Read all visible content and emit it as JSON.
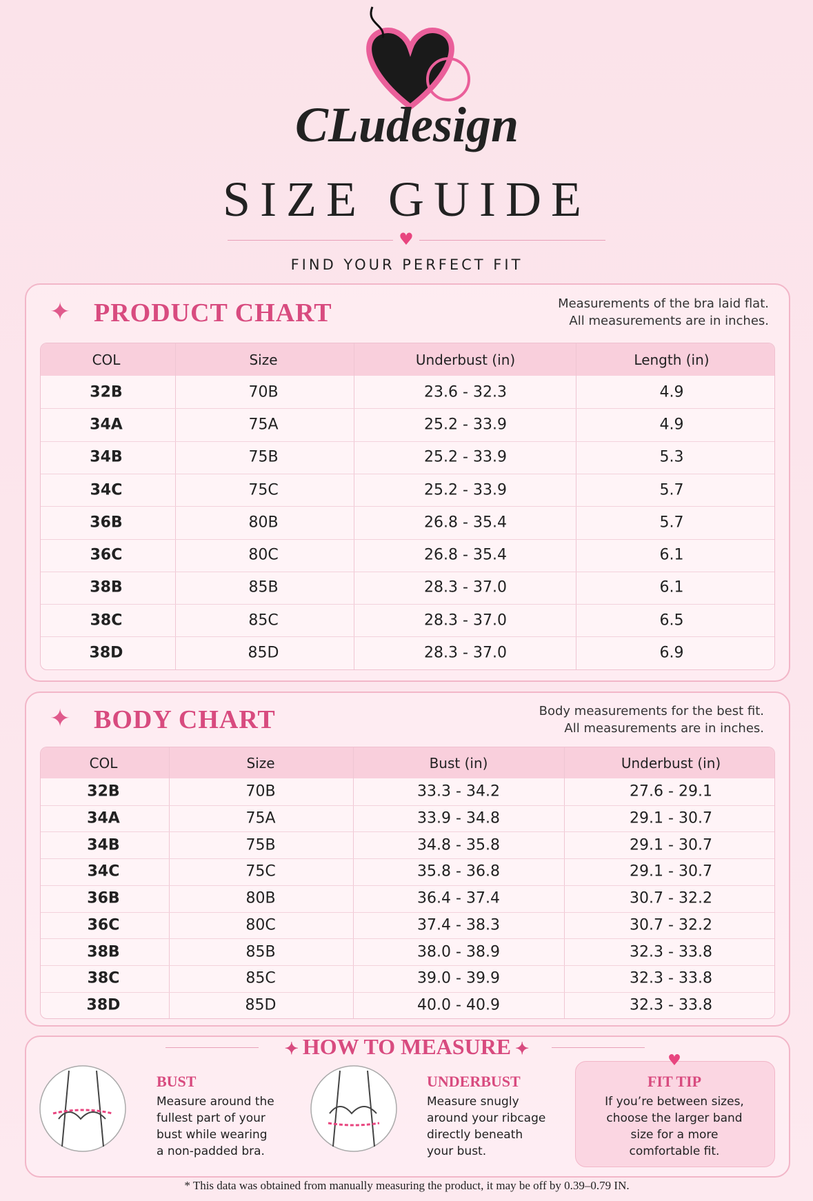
{
  "logo": "CLudesign",
  "header": {
    "title": "SIZE GUIDE",
    "subtitle": "FIND YOUR PERFECT FIT"
  },
  "product_chart": {
    "title": "PRODUCT CHART",
    "notes": [
      "Measurements of the bra laid flat.",
      "All measurements are in inches."
    ],
    "columns": [
      "COL",
      "Size",
      "Underbust (in)",
      "Length (in)"
    ],
    "rows": [
      [
        "32B",
        "70B",
        "23.6 - 32.3",
        "4.9"
      ],
      [
        "34A",
        "75A",
        "25.2 - 33.9",
        "4.9"
      ],
      [
        "34B",
        "75B",
        "25.2 - 33.9",
        "5.3"
      ],
      [
        "34C",
        "75C",
        "25.2 - 33.9",
        "5.7"
      ],
      [
        "36B",
        "80B",
        "26.8 - 35.4",
        "5.7"
      ],
      [
        "36C",
        "80C",
        "26.8 - 35.4",
        "6.1"
      ],
      [
        "38B",
        "85B",
        "28.3 - 37.0",
        "6.1"
      ],
      [
        "38C",
        "85C",
        "28.3 - 37.0",
        "6.5"
      ],
      [
        "38D",
        "85D",
        "28.3 - 37.0",
        "6.9"
      ]
    ]
  },
  "body_chart": {
    "title": "BODY CHART",
    "notes": [
      "Body measurements for the best fit.",
      "All measurements are in inches."
    ],
    "columns": [
      "COL",
      "Size",
      "Bust (in)",
      "Underbust (in)"
    ],
    "rows": [
      [
        "32B",
        "70B",
        "33.3 - 34.2",
        "27.6 - 29.1"
      ],
      [
        "34A",
        "75A",
        "33.9 - 34.8",
        "29.1 - 30.7"
      ],
      [
        "34B",
        "75B",
        "34.8 - 35.8",
        "29.1 - 30.7"
      ],
      [
        "34C",
        "75C",
        "35.8 - 36.8",
        "29.1 - 30.7"
      ],
      [
        "36B",
        "80B",
        "36.4 - 37.4",
        "30.7 - 32.2"
      ],
      [
        "36C",
        "80C",
        "37.4 - 38.3",
        "30.7 - 32.2"
      ],
      [
        "38B",
        "85B",
        "38.0 - 38.9",
        "32.3 - 33.8"
      ],
      [
        "38C",
        "85C",
        "39.0 - 39.9",
        "32.3 - 33.8"
      ],
      [
        "38D",
        "85D",
        "40.0 - 40.9",
        "32.3 - 33.8"
      ]
    ]
  },
  "how_to_measure": {
    "title": "HOW TO MEASURE",
    "bust": {
      "heading": "BUST",
      "lines": [
        "Measure around the",
        "fullest part of your",
        "bust while wearing",
        "a non-padded bra."
      ]
    },
    "underbust": {
      "heading": "UNDERBUST",
      "lines": [
        "Measure snugly",
        "around your ribcage",
        "directly beneath",
        "your bust."
      ]
    },
    "fit_tip": {
      "heading": "FIT TIP",
      "lines": [
        "If you’re between sizes,",
        "choose the larger band",
        "size for a more",
        "comfortable fit."
      ]
    }
  },
  "footnote": "* This data was obtained from manually measuring the product, it may be off by 0.39–0.79 IN."
}
